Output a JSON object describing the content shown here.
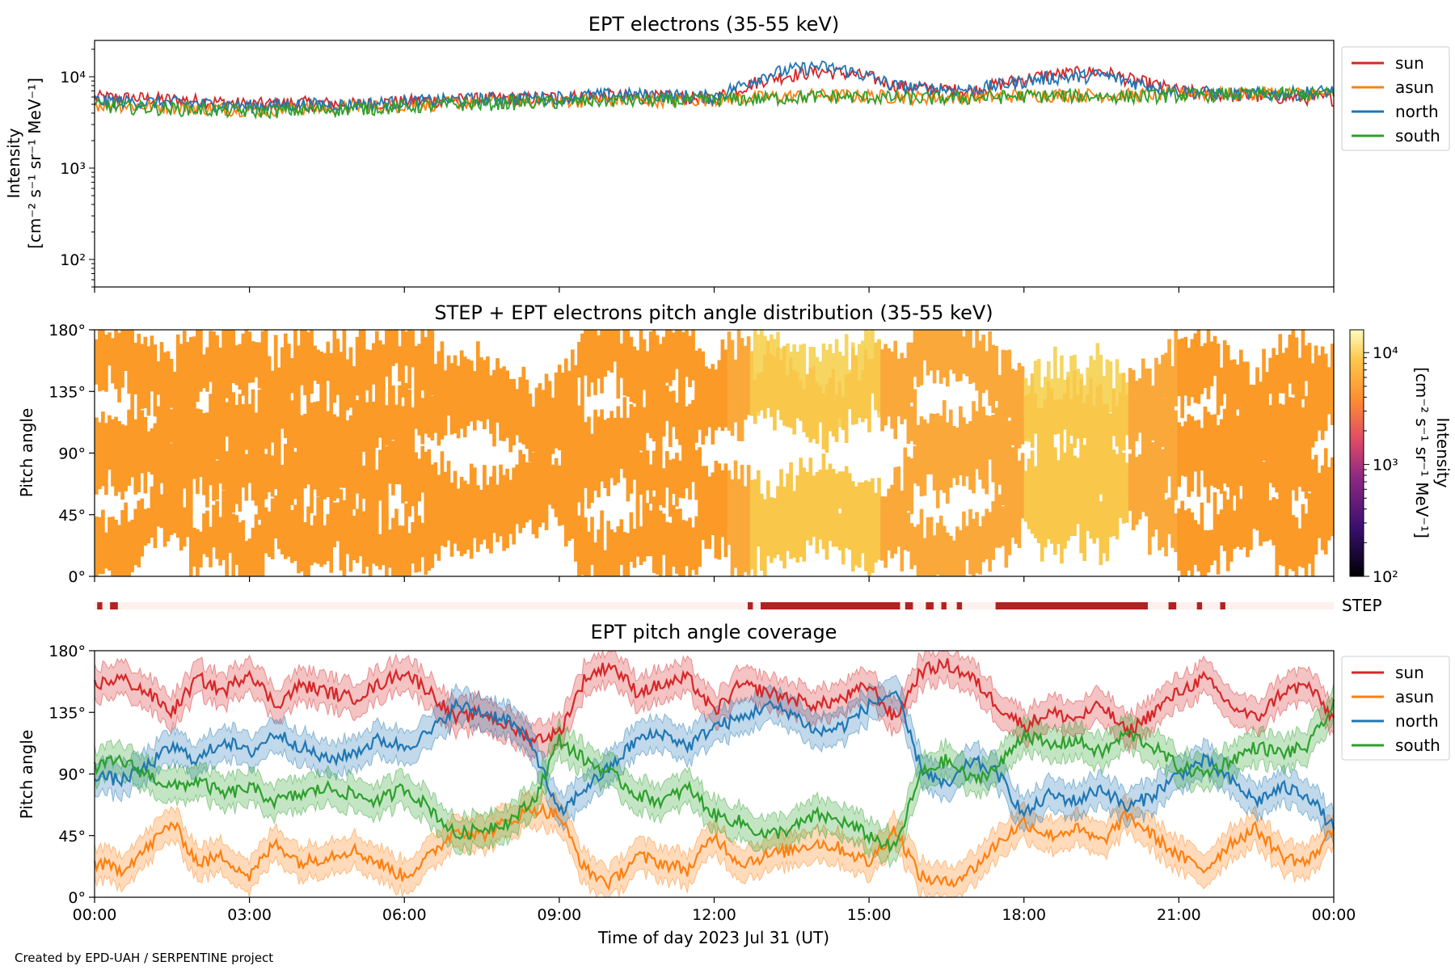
{
  "credit": "Created by EPD-UAH / SERPENTINE project",
  "xlabel": "Time of day 2023 Jul 31 (UT)",
  "x_ticks": [
    "00:00",
    "03:00",
    "06:00",
    "09:00",
    "12:00",
    "15:00",
    "18:00",
    "21:00",
    "00:00"
  ],
  "colors": {
    "sun": "#d62728",
    "asun": "#ff7f0e",
    "north": "#1f77b4",
    "south": "#2ca02c",
    "step_bar": "#b22222",
    "step_bg": "#fdf0ee"
  },
  "chart_data": [
    {
      "type": "line",
      "title": "EPT electrons (35-55 keV)",
      "ylabel_line1": "Intensity",
      "ylabel_line2": "[cm⁻² s⁻¹ sr⁻¹ MeV⁻¹]",
      "yscale": "log",
      "ylim": [
        50,
        25000
      ],
      "y_ticks": [
        {
          "value": 100,
          "label": "10²"
        },
        {
          "value": 1000,
          "label": "10³"
        },
        {
          "value": 10000,
          "label": "10⁴"
        }
      ],
      "x_hours_range": [
        0,
        24
      ],
      "legend": [
        "sun",
        "asun",
        "north",
        "south"
      ],
      "series": [
        {
          "name": "sun",
          "x": [
            0,
            1,
            2,
            3,
            4,
            5,
            6,
            7,
            8,
            9,
            10,
            11,
            12,
            12.5,
            13,
            13.5,
            14,
            14.5,
            15,
            15.5,
            16,
            17,
            18,
            18.5,
            19,
            19.5,
            20,
            21,
            22,
            23,
            24
          ],
          "values": [
            6000,
            5800,
            5500,
            5000,
            5200,
            5000,
            5400,
            5600,
            5800,
            6000,
            6200,
            6000,
            5800,
            7500,
            9500,
            10500,
            11500,
            11000,
            10000,
            8000,
            7500,
            7000,
            9500,
            10500,
            11000,
            11500,
            9500,
            7000,
            6300,
            6000,
            5800
          ]
        },
        {
          "name": "asun",
          "x": [
            0,
            1,
            2,
            3,
            4,
            5,
            6,
            7,
            8,
            9,
            10,
            11,
            12,
            13,
            14,
            15,
            16,
            17,
            18,
            19,
            20,
            21,
            22,
            23,
            24
          ],
          "values": [
            5000,
            4800,
            4600,
            4400,
            4500,
            4700,
            4900,
            5200,
            5400,
            5500,
            5600,
            5600,
            5700,
            6000,
            6300,
            6200,
            6000,
            6000,
            6300,
            6400,
            6300,
            6600,
            6500,
            6700,
            6500
          ]
        },
        {
          "name": "north",
          "x": [
            0,
            1,
            2,
            3,
            4,
            5,
            6,
            7,
            8,
            9,
            10,
            11,
            12,
            12.5,
            13,
            13.5,
            14,
            14.5,
            15,
            15.5,
            16,
            17,
            18,
            18.5,
            19,
            19.5,
            20,
            21,
            22,
            23,
            24
          ],
          "values": [
            5500,
            5300,
            5100,
            4800,
            5000,
            5000,
            5300,
            5600,
            5800,
            6000,
            6400,
            6300,
            6000,
            8000,
            10500,
            12000,
            13000,
            12000,
            10000,
            8000,
            7500,
            7200,
            9000,
            9800,
            10000,
            10500,
            9000,
            7000,
            6500,
            6500,
            7000
          ]
        },
        {
          "name": "south",
          "x": [
            0,
            1,
            2,
            3,
            4,
            5,
            6,
            7,
            8,
            9,
            10,
            11,
            12,
            13,
            14,
            15,
            16,
            17,
            18,
            19,
            20,
            21,
            22,
            23,
            24
          ],
          "values": [
            4800,
            4600,
            4400,
            4200,
            4300,
            4500,
            4700,
            5000,
            5200,
            5300,
            5500,
            5500,
            5600,
            5800,
            6100,
            6000,
            5800,
            5900,
            6200,
            6200,
            6100,
            6300,
            6400,
            6500,
            6600
          ]
        }
      ]
    },
    {
      "type": "heatmap",
      "title": "STEP + EPT electrons pitch angle distribution (35-55 keV)",
      "ylabel": "Pitch angle",
      "ylim": [
        0,
        180
      ],
      "y_ticks": [
        "0°",
        "45°",
        "90°",
        "135°",
        "180°"
      ],
      "colorbar": {
        "label_line1": "Intensity",
        "label_line2": "[cm⁻² s⁻¹ sr⁻¹ MeV⁻¹]",
        "scale": "log",
        "range": [
          100,
          16000
        ],
        "ticks": [
          {
            "value": 100,
            "label": "10²"
          },
          {
            "value": 1000,
            "label": "10³"
          },
          {
            "value": 10000,
            "label": "10⁴"
          }
        ]
      }
    },
    {
      "type": "bar",
      "label": "STEP",
      "periods_hours": [
        [
          0.05,
          0.15
        ],
        [
          0.3,
          0.45
        ],
        [
          12.65,
          12.75
        ],
        [
          12.9,
          15.6
        ],
        [
          15.7,
          15.85
        ],
        [
          16.1,
          16.25
        ],
        [
          16.4,
          16.5
        ],
        [
          16.7,
          16.8
        ],
        [
          17.45,
          20.4
        ],
        [
          20.8,
          20.95
        ],
        [
          21.35,
          21.45
        ],
        [
          21.8,
          21.9
        ]
      ]
    },
    {
      "type": "area",
      "title": "EPT pitch angle coverage",
      "ylabel": "Pitch angle",
      "ylim": [
        0,
        180
      ],
      "y_ticks": [
        "0°",
        "45°",
        "90°",
        "135°",
        "180°"
      ],
      "band_halfwidth_deg": 12,
      "legend": [
        "sun",
        "asun",
        "north",
        "south"
      ],
      "series": [
        {
          "name": "sun",
          "x": [
            0,
            0.5,
            1,
            1.5,
            2,
            2.5,
            3,
            3.5,
            4,
            4.5,
            5,
            5.5,
            6,
            6.5,
            7,
            7.5,
            8,
            8.5,
            9,
            9.5,
            10,
            10.5,
            11,
            11.5,
            12,
            12.5,
            13,
            13.5,
            14,
            14.5,
            15,
            15.5,
            16,
            16.5,
            17,
            17.5,
            18,
            18.5,
            19,
            19.5,
            20,
            20.5,
            21,
            21.5,
            22,
            22.5,
            23,
            23.5,
            24
          ],
          "values": [
            155,
            160,
            150,
            135,
            160,
            150,
            165,
            140,
            155,
            150,
            145,
            155,
            165,
            150,
            130,
            135,
            125,
            115,
            120,
            160,
            170,
            150,
            155,
            160,
            135,
            155,
            150,
            145,
            140,
            145,
            155,
            130,
            165,
            170,
            160,
            140,
            125,
            135,
            130,
            140,
            120,
            135,
            150,
            160,
            140,
            130,
            150,
            155,
            130
          ]
        },
        {
          "name": "asun",
          "x": [
            0,
            0.5,
            1,
            1.5,
            2,
            2.5,
            3,
            3.5,
            4,
            4.5,
            5,
            5.5,
            6,
            6.5,
            7,
            7.5,
            8,
            8.5,
            9,
            9.5,
            10,
            10.5,
            11,
            11.5,
            12,
            12.5,
            13,
            13.5,
            14,
            14.5,
            15,
            15.5,
            16,
            16.5,
            17,
            17.5,
            18,
            18.5,
            19,
            19.5,
            20,
            20.5,
            21,
            21.5,
            22,
            22.5,
            23,
            23.5,
            24
          ],
          "values": [
            25,
            20,
            35,
            55,
            25,
            30,
            15,
            40,
            25,
            30,
            35,
            25,
            15,
            30,
            50,
            45,
            55,
            65,
            60,
            20,
            10,
            30,
            25,
            20,
            45,
            25,
            30,
            35,
            40,
            35,
            25,
            50,
            15,
            10,
            20,
            40,
            55,
            45,
            50,
            40,
            60,
            45,
            30,
            20,
            40,
            50,
            30,
            25,
            50
          ]
        },
        {
          "name": "north",
          "x": [
            0,
            0.5,
            1,
            1.5,
            2,
            2.5,
            3,
            3.5,
            4,
            4.5,
            5,
            5.5,
            6,
            6.5,
            7,
            7.5,
            8,
            8.5,
            9,
            9.5,
            10,
            10.5,
            11,
            11.5,
            12,
            12.5,
            13,
            13.5,
            14,
            14.5,
            15,
            15.5,
            16,
            16.5,
            17,
            17.5,
            18,
            18.5,
            19,
            19.5,
            20,
            20.5,
            21,
            21.5,
            22,
            22.5,
            23,
            23.5,
            24
          ],
          "values": [
            90,
            85,
            95,
            110,
            100,
            115,
            105,
            120,
            110,
            100,
            105,
            115,
            110,
            120,
            140,
            135,
            130,
            110,
            60,
            80,
            95,
            115,
            120,
            110,
            125,
            130,
            140,
            135,
            120,
            125,
            140,
            150,
            95,
            80,
            100,
            90,
            60,
            75,
            70,
            80,
            65,
            75,
            90,
            100,
            85,
            70,
            80,
            75,
            50
          ]
        },
        {
          "name": "south",
          "x": [
            0,
            0.5,
            1,
            1.5,
            2,
            2.5,
            3,
            3.5,
            4,
            4.5,
            5,
            5.5,
            6,
            6.5,
            7,
            7.5,
            8,
            8.5,
            9,
            9.5,
            10,
            10.5,
            11,
            11.5,
            12,
            12.5,
            13,
            13.5,
            14,
            14.5,
            15,
            15.5,
            16,
            16.5,
            17,
            17.5,
            18,
            18.5,
            19,
            19.5,
            20,
            20.5,
            21,
            21.5,
            22,
            22.5,
            23,
            23.5,
            24
          ],
          "values": [
            95,
            100,
            90,
            80,
            85,
            75,
            80,
            70,
            75,
            80,
            75,
            70,
            80,
            65,
            45,
            50,
            55,
            70,
            115,
            100,
            90,
            75,
            70,
            80,
            60,
            55,
            45,
            50,
            60,
            55,
            45,
            35,
            90,
            100,
            85,
            95,
            120,
            110,
            115,
            105,
            120,
            110,
            95,
            90,
            100,
            110,
            105,
            110,
            140
          ]
        }
      ]
    }
  ]
}
